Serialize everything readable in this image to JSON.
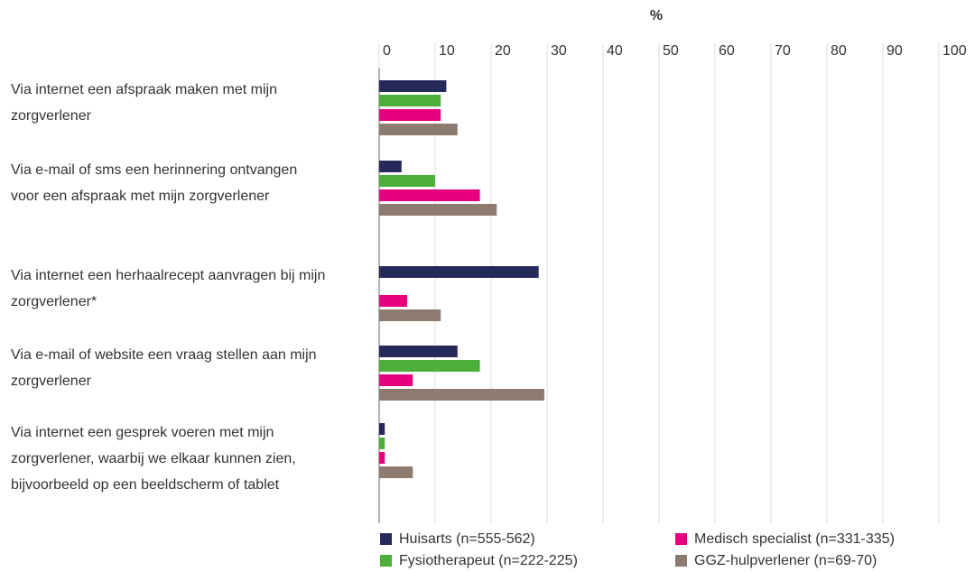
{
  "chart_data": {
    "type": "barh",
    "xlabel": "%",
    "categories": [
      "Via internet een afspraak maken met mijn zorgverlener",
      "Via e-mail of sms een herinnering ontvangen voor een afspraak met mijn zorgverlener",
      "Via internet een herhaalrecept aanvragen bij mijn zorgverlener*",
      "Via e-mail of website een vraag stellen aan mijn zorgverlener",
      "Via internet een gesprek voeren met mijn zorgverlener, waarbij we elkaar kunnen zien, bijvoorbeeld op een beeldscherm of tablet"
    ],
    "series": [
      {
        "name": "Huisarts (n=555-562)",
        "color": "#252a5a",
        "values": [
          12,
          4,
          28.5,
          14,
          1
        ]
      },
      {
        "name": "Fysiotherapeut (n=222-225)",
        "color": "#4caf3a",
        "values": [
          11,
          10,
          null,
          18,
          1
        ]
      },
      {
        "name": "Medisch specialist (n=331-335)",
        "color": "#e6007e",
        "values": [
          11,
          18,
          5,
          6,
          1
        ]
      },
      {
        "name": "GGZ-hulpverlener (n=69-70)",
        "color": "#8c7b6e",
        "values": [
          14,
          21,
          11,
          29.5,
          6
        ]
      }
    ],
    "xlim": [
      0,
      100
    ],
    "xticks": [
      0,
      10,
      20,
      30,
      40,
      50,
      60,
      70,
      80,
      90,
      100
    ],
    "grid": true
  }
}
